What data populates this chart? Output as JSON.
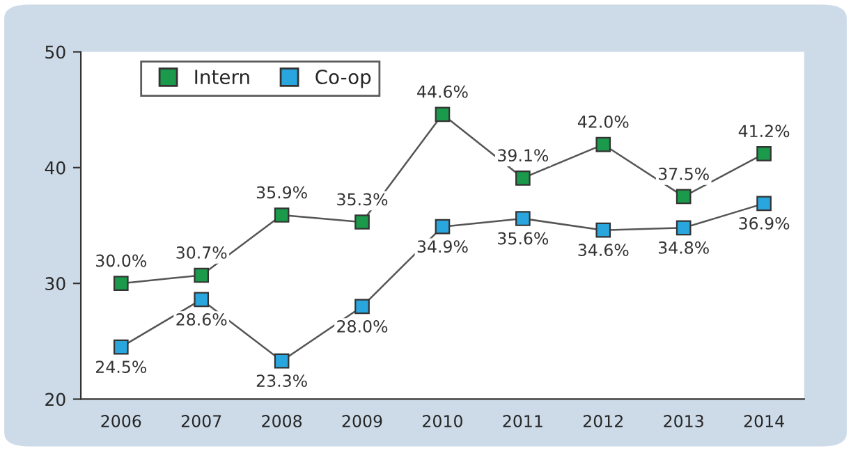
{
  "chart_data": {
    "type": "line",
    "categories": [
      "2006",
      "2007",
      "2008",
      "2009",
      "2010",
      "2011",
      "2012",
      "2013",
      "2014"
    ],
    "series": [
      {
        "name": "Intern",
        "color": "#1a9a4a",
        "values": [
          30.0,
          30.7,
          35.9,
          35.3,
          44.6,
          39.1,
          42.0,
          37.5,
          41.2
        ],
        "value_labels": [
          "30.0%",
          "30.7%",
          "35.9%",
          "35.3%",
          "44.6%",
          "39.1%",
          "42.0%",
          "37.5%",
          "41.2%"
        ]
      },
      {
        "name": "Co-op",
        "color": "#2aa6de",
        "values": [
          24.5,
          28.6,
          23.3,
          28.0,
          34.9,
          35.6,
          34.6,
          34.8,
          36.9
        ],
        "value_labels": [
          "24.5%",
          "28.6%",
          "23.3%",
          "28.0%",
          "34.9%",
          "35.6%",
          "34.6%",
          "34.8%",
          "36.9%"
        ]
      }
    ],
    "ylim": [
      20,
      50
    ],
    "yticks": [
      20,
      30,
      40,
      50
    ],
    "marker": "square",
    "legend": "top left",
    "grid": false
  }
}
